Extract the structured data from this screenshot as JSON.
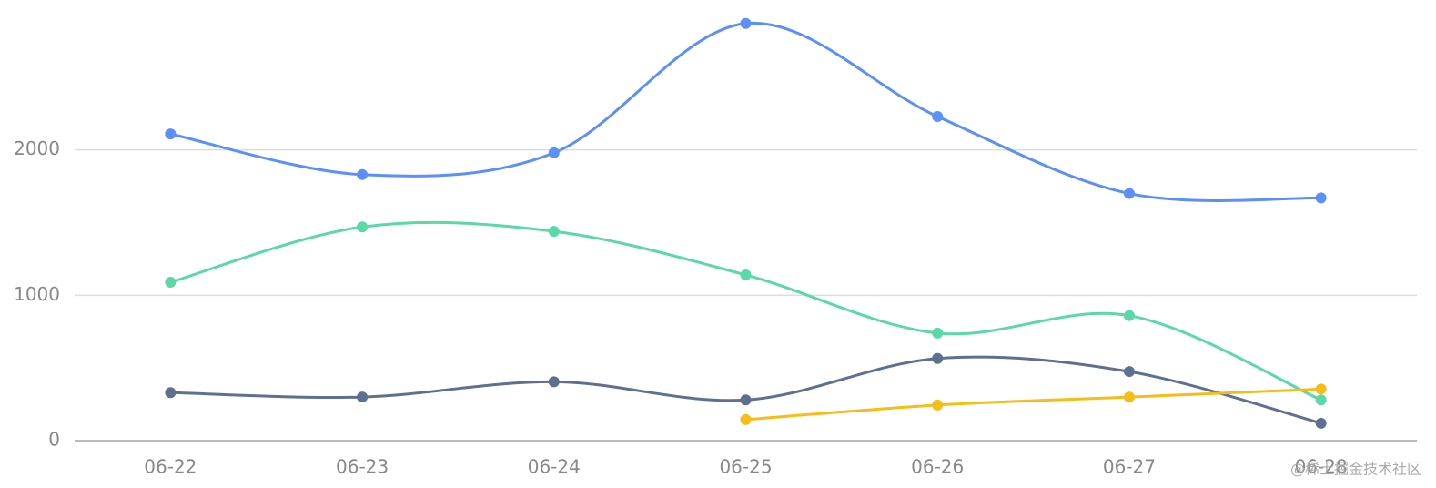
{
  "chart_data": {
    "type": "line",
    "categories": [
      "06-22",
      "06-23",
      "06-24",
      "06-25",
      "06-26",
      "06-27",
      "06-28"
    ],
    "series": [
      {
        "color": "#5B8FF9",
        "values": [
          2110,
          1830,
          1980,
          2870,
          2230,
          1700,
          1670
        ]
      },
      {
        "color": "#5AD8A6",
        "values": [
          1090,
          1470,
          1440,
          1140,
          740,
          860,
          280
        ]
      },
      {
        "color": "#5D7092",
        "values": [
          330,
          300,
          405,
          280,
          565,
          475,
          120
        ]
      },
      {
        "color": "#F6BD16",
        "values": [
          null,
          null,
          null,
          145,
          245,
          300,
          355
        ]
      }
    ],
    "ylim": [
      0,
      3000
    ],
    "yticks": [
      0,
      1000,
      2000
    ],
    "grid": true,
    "smooth": true,
    "watermark": "@稀土掘金技术社区"
  }
}
